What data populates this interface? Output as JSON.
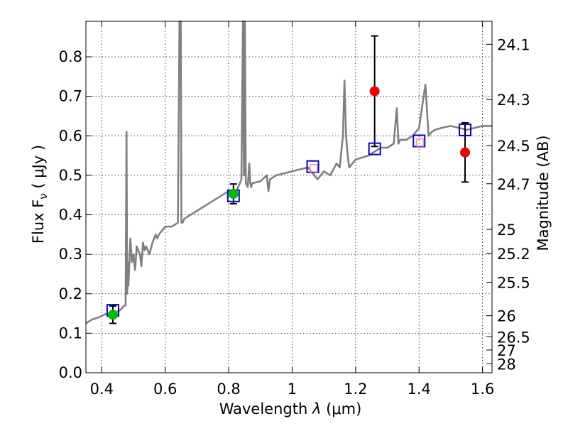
{
  "chart_data": {
    "type": "scatter",
    "xlabel_prefix": "Wavelength  ",
    "xlabel_symbol": "λ",
    "xlabel_units": " (μm)",
    "ylabel": "Flux  F",
    "ylabel_sub": "ν",
    "ylabel_units": "  ( μJy )",
    "y2label": "Magnitude (AB)",
    "xlim": [
      0.35,
      1.63
    ],
    "ylim": [
      0.0,
      0.89
    ],
    "grid": true,
    "x_ticks": [
      {
        "value": 0.4,
        "label": "0.4"
      },
      {
        "value": 0.6,
        "label": "0.6"
      },
      {
        "value": 0.8,
        "label": "0.8"
      },
      {
        "value": 1.0,
        "label": "1"
      },
      {
        "value": 1.2,
        "label": "1.2"
      },
      {
        "value": 1.4,
        "label": "1.4"
      },
      {
        "value": 1.6,
        "label": "1.6"
      }
    ],
    "y_ticks": [
      {
        "value": 0.0,
        "label": "0.0"
      },
      {
        "value": 0.1,
        "label": "0.1"
      },
      {
        "value": 0.2,
        "label": "0.2"
      },
      {
        "value": 0.3,
        "label": "0.3"
      },
      {
        "value": 0.4,
        "label": "0.4"
      },
      {
        "value": 0.5,
        "label": "0.5"
      },
      {
        "value": 0.6,
        "label": "0.6"
      },
      {
        "value": 0.7,
        "label": "0.7"
      },
      {
        "value": 0.8,
        "label": "0.8"
      }
    ],
    "mag_ticks": [
      {
        "value": 24.1,
        "label": "24.1"
      },
      {
        "value": 24.3,
        "label": "24.3"
      },
      {
        "value": 24.5,
        "label": "24.5"
      },
      {
        "value": 24.7,
        "label": "24.7"
      },
      {
        "value": 25.0,
        "label": "25"
      },
      {
        "value": 25.2,
        "label": "25.2"
      },
      {
        "value": 25.5,
        "label": "25.5"
      },
      {
        "value": 26.0,
        "label": "26"
      },
      {
        "value": 26.5,
        "label": "26.5"
      },
      {
        "value": 27.0,
        "label": "27"
      },
      {
        "value": 28.0,
        "label": "28"
      }
    ],
    "series": [
      {
        "kind": "spectrum",
        "color": "#808080",
        "x": [
          0.35,
          0.37,
          0.39,
          0.41,
          0.43,
          0.45,
          0.46,
          0.47,
          0.475,
          0.478,
          0.48,
          0.482,
          0.484,
          0.49,
          0.495,
          0.5,
          0.505,
          0.51,
          0.52,
          0.525,
          0.53,
          0.535,
          0.54,
          0.55,
          0.56,
          0.57,
          0.575,
          0.58,
          0.6,
          0.62,
          0.64,
          0.645,
          0.647,
          0.649,
          0.651,
          0.653,
          0.655,
          0.66,
          0.68,
          0.7,
          0.72,
          0.74,
          0.76,
          0.78,
          0.8,
          0.82,
          0.83,
          0.84,
          0.845,
          0.848,
          0.851,
          0.854,
          0.86,
          0.865,
          0.868,
          0.871,
          0.875,
          0.9,
          0.92,
          0.925,
          0.93,
          0.95,
          1.0,
          1.05,
          1.08,
          1.1,
          1.12,
          1.14,
          1.15,
          1.16,
          1.165,
          1.17,
          1.175,
          1.18,
          1.2,
          1.24,
          1.26,
          1.28,
          1.3,
          1.32,
          1.33,
          1.335,
          1.34,
          1.36,
          1.38,
          1.4,
          1.42,
          1.43,
          1.44,
          1.45,
          1.47,
          1.5,
          1.55,
          1.6,
          1.63
        ],
        "y": [
          0.125,
          0.135,
          0.14,
          0.148,
          0.15,
          0.155,
          0.16,
          0.17,
          0.17,
          0.61,
          0.2,
          0.28,
          0.22,
          0.34,
          0.28,
          0.3,
          0.26,
          0.32,
          0.3,
          0.27,
          0.33,
          0.31,
          0.32,
          0.3,
          0.33,
          0.35,
          0.34,
          0.35,
          0.37,
          0.37,
          0.38,
          0.89,
          0.89,
          0.89,
          0.38,
          0.38,
          0.38,
          0.39,
          0.4,
          0.41,
          0.42,
          0.43,
          0.44,
          0.45,
          0.46,
          0.455,
          0.47,
          0.49,
          0.89,
          0.5,
          0.89,
          0.48,
          0.47,
          0.53,
          0.48,
          0.47,
          0.48,
          0.485,
          0.5,
          0.46,
          0.49,
          0.5,
          0.51,
          0.52,
          0.49,
          0.51,
          0.5,
          0.53,
          0.52,
          0.6,
          0.74,
          0.6,
          0.55,
          0.52,
          0.54,
          0.55,
          0.56,
          0.57,
          0.57,
          0.58,
          0.67,
          0.58,
          0.59,
          0.59,
          0.6,
          0.62,
          0.73,
          0.6,
          0.61,
          0.615,
          0.62,
          0.625,
          0.615,
          0.625,
          0.625
        ]
      },
      {
        "kind": "model",
        "color": "#0000dd",
        "x": [
          0.435,
          0.815,
          1.065,
          1.26,
          1.4,
          1.545
        ],
        "y": [
          0.158,
          0.448,
          0.522,
          0.567,
          0.587,
          0.615
        ]
      },
      {
        "kind": "detection",
        "color": "#00bb00",
        "x": [
          0.435,
          0.815
        ],
        "y": [
          0.147,
          0.453
        ],
        "err": [
          0.022,
          0.025
        ]
      },
      {
        "kind": "detection",
        "color": "#ee0000",
        "x": [
          1.26,
          1.545
        ],
        "y": [
          0.713,
          0.558
        ],
        "err": [
          0.14,
          0.075
        ]
      },
      {
        "kind": "marker",
        "color": "#ee9999",
        "x": [
          1.068,
          1.403
        ],
        "y": [
          0.518,
          0.583
        ]
      }
    ]
  }
}
